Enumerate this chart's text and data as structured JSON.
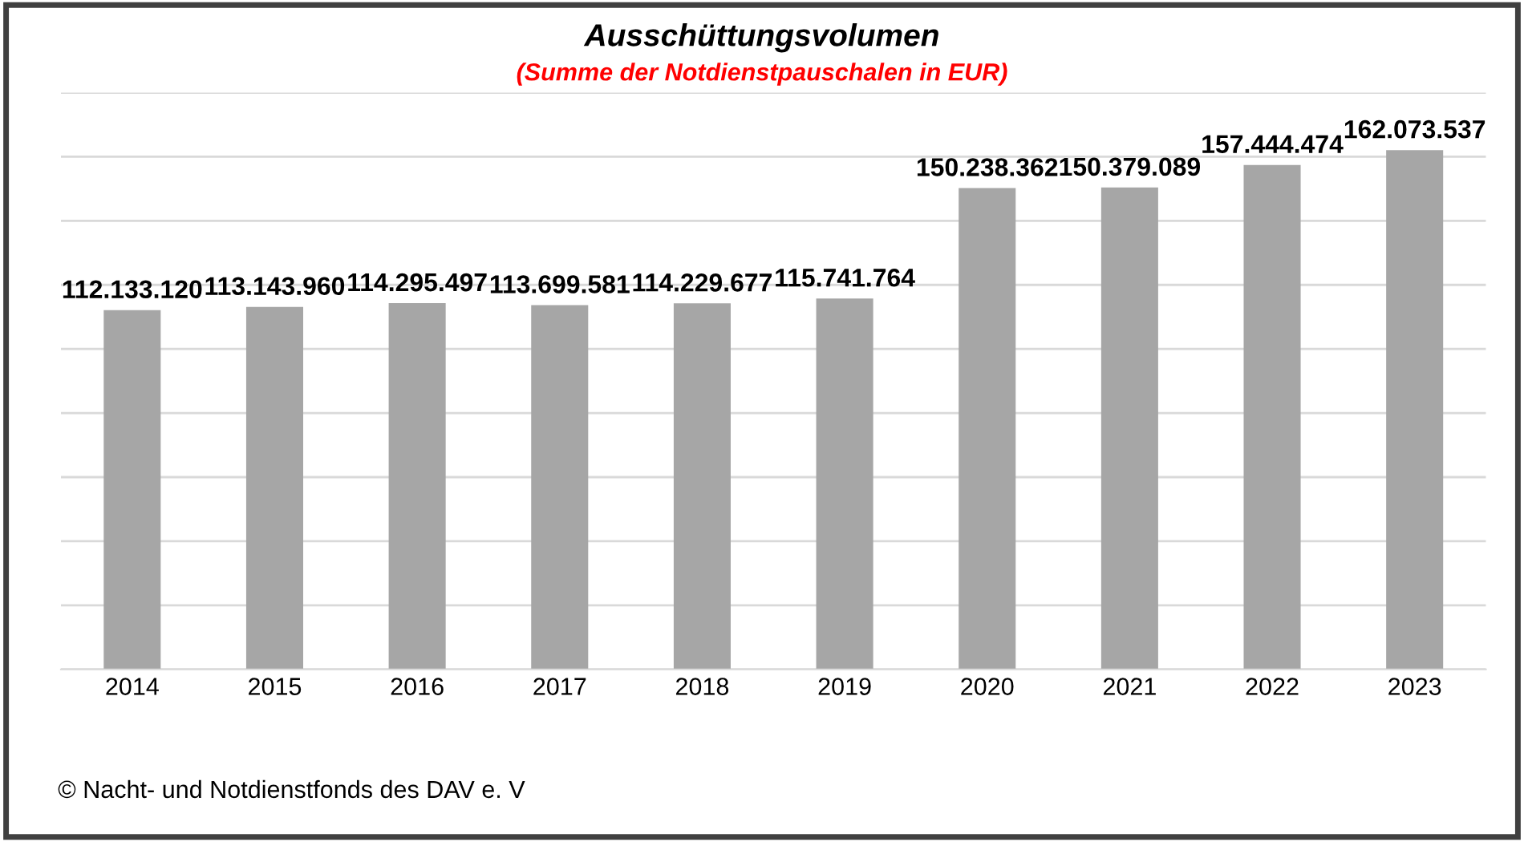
{
  "chart_data": {
    "type": "bar",
    "title": "Ausschüttungsvolumen",
    "subtitle": "(Summe der Notdienstpauschalen in EUR)",
    "categories": [
      "2014",
      "2015",
      "2016",
      "2017",
      "2018",
      "2019",
      "2020",
      "2021",
      "2022",
      "2023"
    ],
    "values": [
      112133120,
      113143960,
      114295497,
      113699581,
      114229677,
      115741764,
      150238362,
      150379089,
      157444474,
      162073537
    ],
    "value_labels": [
      "112.133.120",
      "113.143.960",
      "114.295.497",
      "113.699.581",
      "114.229.677",
      "115.741.764",
      "150.238.362",
      "150.379.089",
      "157.444.474",
      "162.073.537"
    ],
    "color": "#a6a6a6",
    "ylim": [
      0,
      180000000
    ],
    "yticks": [
      {
        "value": 0,
        "label": null
      },
      {
        "value": 20000000,
        "label": null
      },
      {
        "value": 40000000,
        "label": null
      },
      {
        "value": 60000000,
        "label": null
      },
      {
        "value": 80000000,
        "label": null
      },
      {
        "value": 100000000,
        "label": null
      },
      {
        "value": 120000000,
        "label": null
      },
      {
        "value": 140000000,
        "label": null
      },
      {
        "value": 160000000,
        "label": null
      },
      {
        "value": 180000000,
        "label": null
      }
    ],
    "tick_labels": "x",
    "grid": "y",
    "legend": false,
    "annotations": [
      "© Nacht- und Notdienstfonds des DAV e. V"
    ]
  }
}
